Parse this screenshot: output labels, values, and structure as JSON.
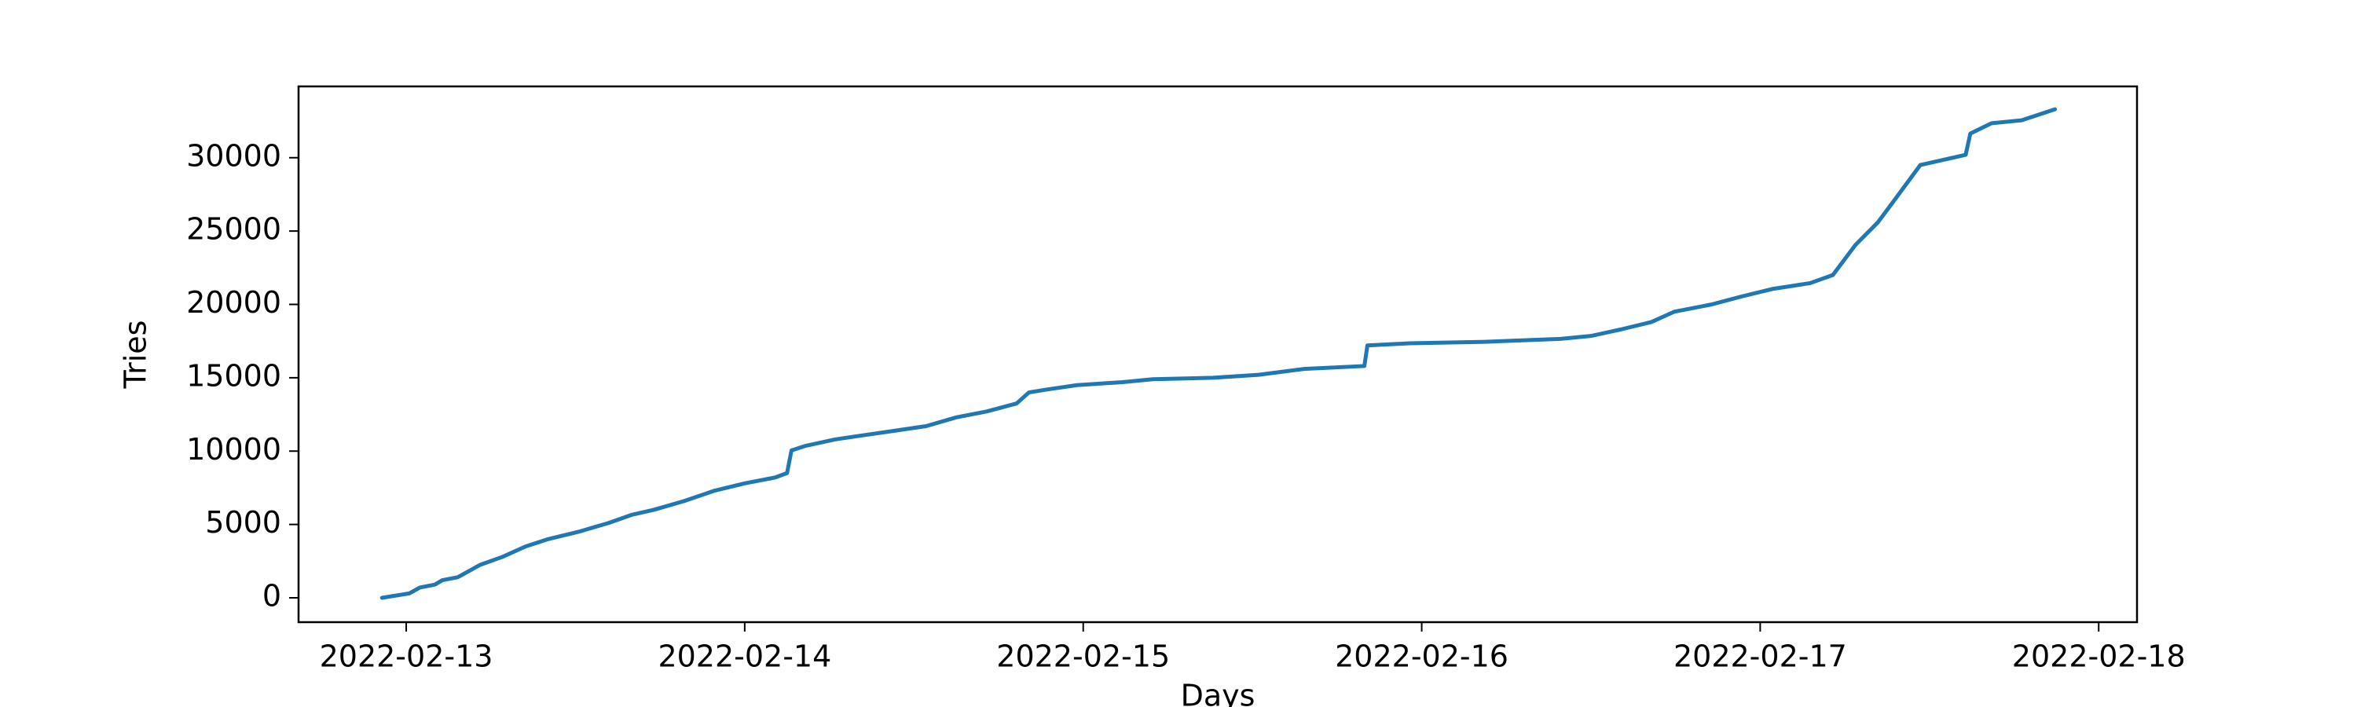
{
  "chart_data": {
    "type": "line",
    "xlabel": "Days",
    "ylabel": "Tries",
    "color": "#1f77b4",
    "x": [
      "2022-02-12T22:17",
      "2022-02-13T00:13",
      "2022-02-13T00:58",
      "2022-02-13T02:02",
      "2022-02-13T02:34",
      "2022-02-13T03:39",
      "2022-02-13T04:30",
      "2022-02-13T05:15",
      "2022-02-13T06:51",
      "2022-02-13T08:28",
      "2022-02-13T10:04",
      "2022-02-13T12:13",
      "2022-02-13T14:21",
      "2022-02-13T15:58",
      "2022-02-13T17:34",
      "2022-02-13T19:43",
      "2022-02-13T21:51",
      "2022-02-14T00:00",
      "2022-02-14T02:09",
      "2022-02-14T03:00",
      "2022-02-14T03:19",
      "2022-02-14T04:17",
      "2022-02-14T06:26",
      "2022-02-14T08:34",
      "2022-02-14T10:43",
      "2022-02-14T12:51",
      "2022-02-14T15:00",
      "2022-02-14T17:09",
      "2022-02-14T19:17",
      "2022-02-14T20:09",
      "2022-02-14T21:26",
      "2022-02-14T23:34",
      "2022-02-15T02:47",
      "2022-02-15T04:56",
      "2022-02-15T09:13",
      "2022-02-15T12:26",
      "2022-02-15T15:39",
      "2022-02-15T19:56",
      "2022-02-15T20:09",
      "2022-02-15T23:09",
      "2022-02-16T04:30",
      "2022-02-16T09:51",
      "2022-02-16T12:00",
      "2022-02-16T14:09",
      "2022-02-16T16:17",
      "2022-02-16T17:54",
      "2022-02-16T20:34",
      "2022-02-16T22:43",
      "2022-02-17T00:51",
      "2022-02-17T03:32",
      "2022-02-17T05:09",
      "2022-02-17T06:45",
      "2022-02-17T08:21",
      "2022-02-17T09:26",
      "2022-02-17T11:21",
      "2022-02-17T13:11",
      "2022-02-17T14:34",
      "2022-02-17T14:54",
      "2022-02-17T16:24",
      "2022-02-17T18:32",
      "2022-02-17T20:54"
    ],
    "values": [
      0,
      300,
      700,
      900,
      1200,
      1400,
      1850,
      2250,
      2800,
      3500,
      4000,
      4500,
      5100,
      5650,
      6000,
      6600,
      7300,
      7800,
      8200,
      8500,
      10050,
      10350,
      10800,
      11100,
      11400,
      11700,
      12300,
      12700,
      13250,
      14000,
      14200,
      14500,
      14700,
      14900,
      15000,
      15200,
      15600,
      15800,
      17200,
      17350,
      17450,
      17650,
      17850,
      18300,
      18800,
      19500,
      20000,
      20550,
      21050,
      21450,
      22000,
      24050,
      25600,
      27000,
      29500,
      29900,
      30200,
      31650,
      32350,
      32550,
      33300
    ],
    "xlim": [
      "2022-02-12T16:22",
      "2022-02-18T02:43"
    ],
    "xticks": [
      "2022-02-13",
      "2022-02-14",
      "2022-02-15",
      "2022-02-16",
      "2022-02-17",
      "2022-02-18"
    ],
    "ylim": [
      -1660,
      34860
    ],
    "yticks": [
      0,
      5000,
      10000,
      15000,
      20000,
      25000,
      30000
    ]
  }
}
